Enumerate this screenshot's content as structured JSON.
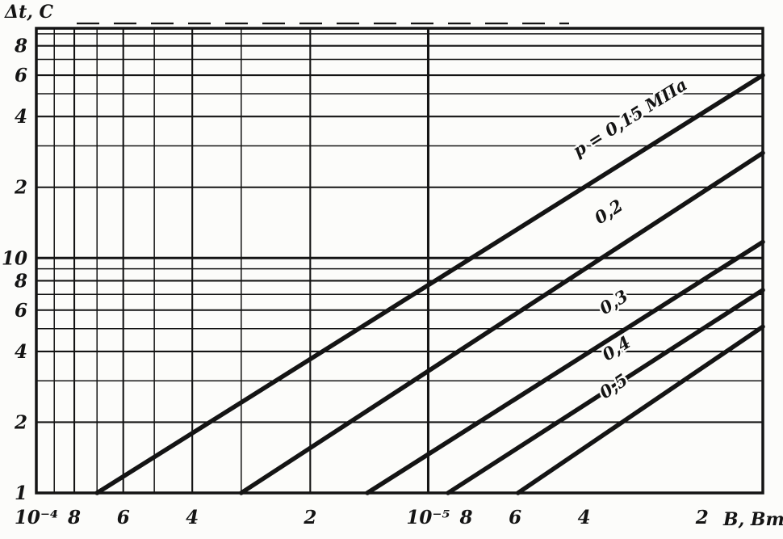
{
  "figure": {
    "description": "Scanned log-log chart of temperature difference vs heat power for several pressures"
  },
  "chart_data": {
    "type": "line",
    "scale": "log-log",
    "title": "",
    "xlabel": "В, Вт",
    "ylabel": "Δt, C",
    "x_reversed": true,
    "xlim": [
      1.4e-06,
      0.0001
    ],
    "ylim": [
      1,
      95
    ],
    "grid": "log minor grid on both axes, decade lines heavier",
    "legend_position": "labels along lines",
    "x_ticks": [
      {
        "value": 0.0001,
        "label": "10⁻⁴"
      },
      {
        "value": 8e-05,
        "label": "8"
      },
      {
        "value": 6e-05,
        "label": "6"
      },
      {
        "value": 4e-05,
        "label": "4"
      },
      {
        "value": 2e-05,
        "label": "2"
      },
      {
        "value": 1e-05,
        "label": "10⁻⁵"
      },
      {
        "value": 8e-06,
        "label": "8"
      },
      {
        "value": 6e-06,
        "label": "6"
      },
      {
        "value": 4e-06,
        "label": "4"
      },
      {
        "value": 2e-06,
        "label": "2"
      }
    ],
    "y_ticks": [
      {
        "value": 1,
        "label": "1"
      },
      {
        "value": 2,
        "label": "2"
      },
      {
        "value": 4,
        "label": "4"
      },
      {
        "value": 6,
        "label": "6"
      },
      {
        "value": 8,
        "label": "8"
      },
      {
        "value": 10,
        "label": "10"
      },
      {
        "value": 20,
        "label": "2"
      },
      {
        "value": 40,
        "label": "4"
      },
      {
        "value": 60,
        "label": "6"
      },
      {
        "value": 80,
        "label": "8"
      }
    ],
    "series": [
      {
        "label": "p = 0,15 МПа",
        "pressure": "0,15 МПа",
        "points": [
          [
            7e-05,
            1.0
          ],
          [
            1.4e-06,
            60
          ]
        ],
        "label_at_B": 3e-06,
        "label_dy": -42
      },
      {
        "label": "0,2",
        "pressure": "0,2 МПа",
        "points": [
          [
            3e-05,
            1.0
          ],
          [
            1.4e-06,
            28
          ]
        ],
        "label_at_B": 3.4e-06,
        "label_dy": -43
      },
      {
        "label": "0,3",
        "pressure": "0,3 МПа",
        "points": [
          [
            1.43e-05,
            1.0
          ],
          [
            1.4e-06,
            11.7
          ]
        ],
        "label_at_B": 3.3e-06,
        "label_dy": -34
      },
      {
        "label": "0,4",
        "pressure": "0,4 МПа",
        "points": [
          [
            8.9e-06,
            1.0
          ],
          [
            1.4e-06,
            7.3
          ]
        ],
        "label_at_B": 3.25e-06,
        "label_dy": -36
      },
      {
        "label": "0,5",
        "pressure": "0,5 МПа",
        "points": [
          [
            5.9e-06,
            1.0
          ],
          [
            1.4e-06,
            5.1
          ]
        ],
        "label_at_B": 3.3e-06,
        "label_dy": -43
      }
    ]
  }
}
